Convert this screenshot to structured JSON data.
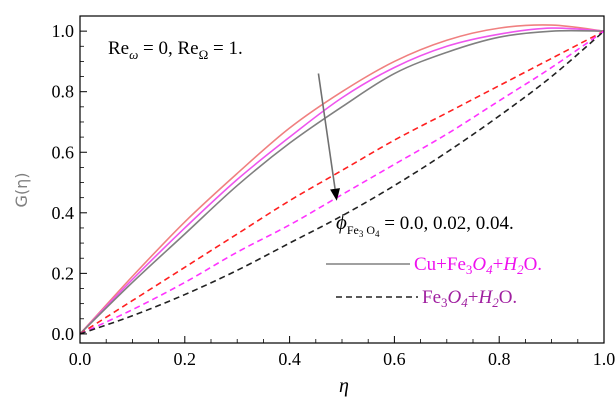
{
  "chart_data": {
    "type": "line",
    "title": "",
    "xlabel": "η",
    "ylabel": "G(η)",
    "xlim": [
      0.0,
      1.0
    ],
    "ylim": [
      -0.03,
      1.05
    ],
    "x_ticks": [
      "0.0",
      "0.2",
      "0.4",
      "0.6",
      "0.8",
      "1.0"
    ],
    "y_ticks": [
      "0.0",
      "0.2",
      "0.4",
      "0.6",
      "0.8",
      "1.0"
    ],
    "x": [
      0,
      0.1,
      0.2,
      0.3,
      0.4,
      0.5,
      0.6,
      0.7,
      0.8,
      0.9,
      1.0
    ],
    "series": [
      {
        "group": "solid",
        "phi": "0.0",
        "color": "#f08080",
        "dash": "solid",
        "values": [
          0,
          0.19,
          0.37,
          0.53,
          0.68,
          0.8,
          0.9,
          0.97,
          1.01,
          1.02,
          1.0
        ]
      },
      {
        "group": "solid",
        "phi": "0.02",
        "color": "#ee55ee",
        "dash": "solid",
        "values": [
          0,
          0.18,
          0.35,
          0.51,
          0.65,
          0.78,
          0.88,
          0.95,
          0.99,
          1.01,
          1.0
        ]
      },
      {
        "group": "solid",
        "phi": "0.04",
        "color": "#808080",
        "dash": "solid",
        "values": [
          0,
          0.17,
          0.33,
          0.49,
          0.63,
          0.75,
          0.86,
          0.93,
          0.98,
          1.0,
          1.0
        ]
      },
      {
        "group": "dashed",
        "phi": "0.0",
        "color": "#ff2020",
        "dash": "dashed",
        "values": [
          0,
          0.11,
          0.22,
          0.33,
          0.44,
          0.54,
          0.64,
          0.73,
          0.82,
          0.91,
          1.0
        ]
      },
      {
        "group": "dashed",
        "phi": "0.02",
        "color": "#ff33ff",
        "dash": "dashed",
        "values": [
          0,
          0.08,
          0.17,
          0.27,
          0.36,
          0.46,
          0.56,
          0.66,
          0.77,
          0.88,
          1.0
        ]
      },
      {
        "group": "dashed",
        "phi": "0.04",
        "color": "#222222",
        "dash": "dashed",
        "values": [
          0,
          0.06,
          0.13,
          0.21,
          0.3,
          0.39,
          0.49,
          0.6,
          0.72,
          0.85,
          1.0
        ]
      }
    ],
    "annotations": {
      "reynolds": "Re_ω = 0,  Re_Ω = 1.",
      "phi_label": "ϕ_Fe3O4 = 0.0, 0.02, 0.04.",
      "arrow": {
        "from": [
          0.455,
          0.86
        ],
        "to": [
          0.49,
          0.44
        ]
      }
    },
    "legend": [
      {
        "label": "Cu+Fe₃O₄+H₂O.",
        "line_color": "#808080",
        "text_color": "#ee11ee",
        "dash": "solid"
      },
      {
        "label": "Fe₃O₄+H₂O.",
        "line_color": "#222222",
        "text_color": "#a020a0",
        "dash": "dashed"
      }
    ],
    "legend_placement": "bottom-right",
    "grid": false
  }
}
